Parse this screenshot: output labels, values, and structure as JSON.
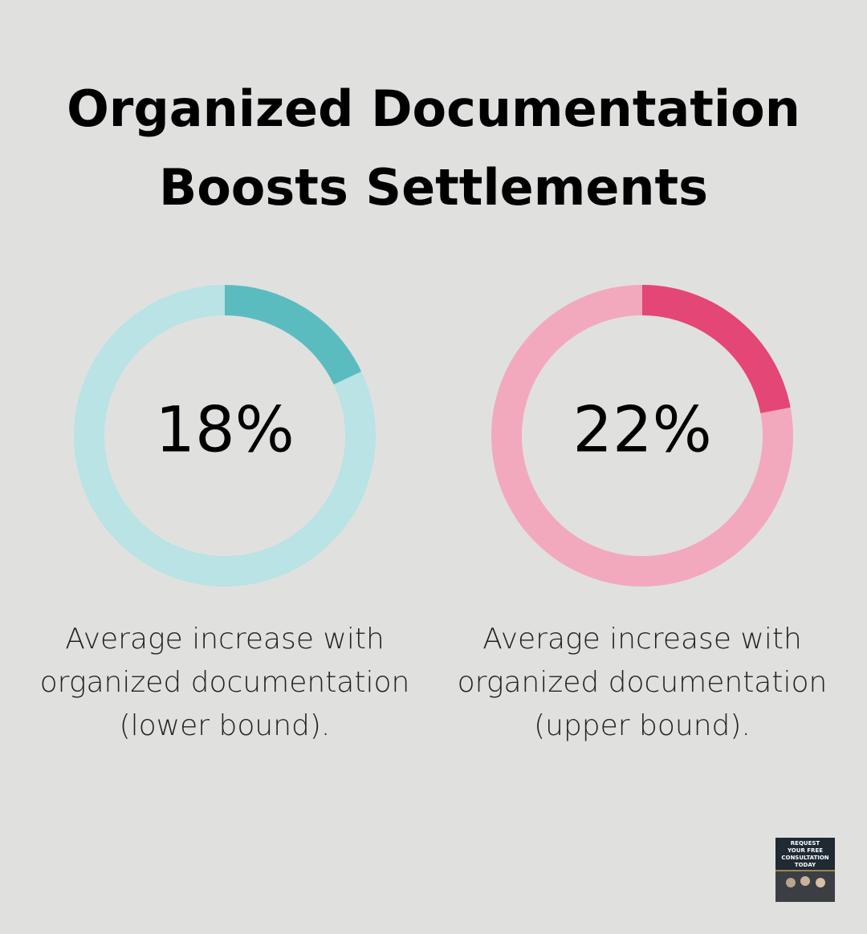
{
  "title": [
    "Organized Documentation",
    "Boosts Settlements"
  ],
  "chart_data": [
    {
      "type": "donut",
      "values": [
        18
      ],
      "value_labels": [
        "18%"
      ],
      "color": "#5bbcc0",
      "track_color": "#b9e3e4",
      "caption": [
        "Average increase with",
        "organized documentation",
        "(lower bound)."
      ]
    },
    {
      "type": "donut",
      "values": [
        22
      ],
      "value_labels": [
        "22%"
      ],
      "color": "#e44676",
      "track_color": "#f2a9be",
      "caption": [
        "Average increase with",
        "organized documentation",
        "(upper bound)."
      ]
    }
  ],
  "badge": [
    "REQUEST",
    "YOUR FREE",
    "CONSULTATION",
    "TODAY"
  ]
}
